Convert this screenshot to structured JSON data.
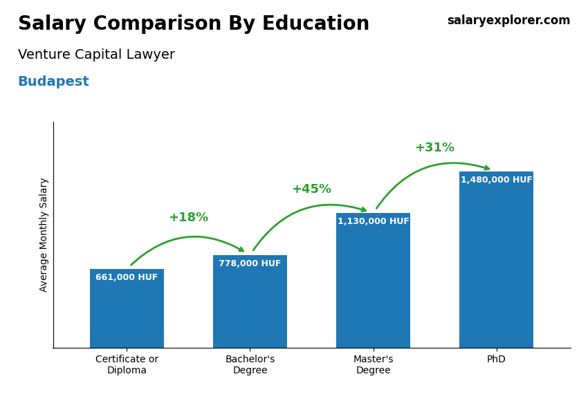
{
  "chart_data": {
    "type": "bar",
    "title": "Salary Comparison By Education",
    "subtitle": "Venture Capital Lawyer",
    "ylabel": "Average Monthly Salary",
    "categories": [
      "Certificate or\nDiploma",
      "Bachelor's\nDegree",
      "Master's\nDegree",
      "PhD"
    ],
    "values": [
      661000,
      778000,
      1130000,
      1480000
    ],
    "value_labels": [
      "661,000 HUF",
      "778,000 HUF",
      "1,130,000 HUF",
      "1,480,000 HUF"
    ],
    "data_labels": true,
    "ylim": [
      0,
      1900000
    ],
    "yticks": [],
    "tick_labels": "x",
    "annotations": [
      {
        "text": "+18%",
        "from": "Certificate or\nDiploma",
        "to": "Bachelor's\nDegree"
      },
      {
        "text": "+45%",
        "from": "Bachelor's\nDegree",
        "to": "Master's\nDegree"
      },
      {
        "text": "+31%",
        "from": "Master's\nDegree",
        "to": "PhD"
      },
      {
        "text": "Budapest"
      },
      {
        "text": "salaryexplorer.com"
      }
    ]
  }
}
